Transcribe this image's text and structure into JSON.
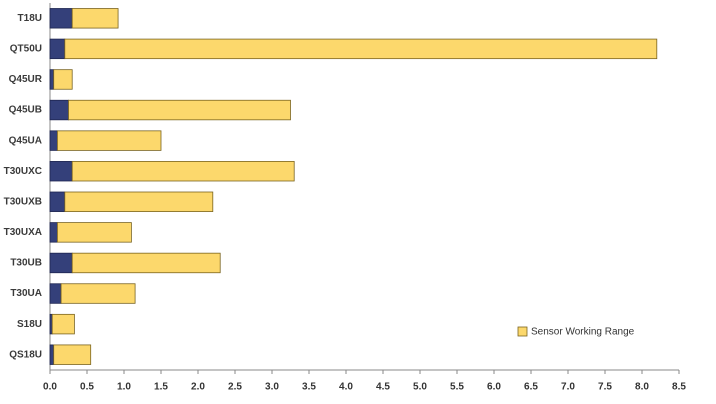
{
  "chart_data": {
    "type": "stacked-barh",
    "categories": [
      "T18U",
      "QT50U",
      "Q45UR",
      "Q45UB",
      "Q45UA",
      "T30UXC",
      "T30UXB",
      "T30UXA",
      "T30UB",
      "T30UA",
      "S18U",
      "QS18U"
    ],
    "series": [
      {
        "color": "#34407a",
        "values": [
          0.3,
          0.2,
          0.05,
          0.25,
          0.1,
          0.3,
          0.2,
          0.1,
          0.3,
          0.15,
          0.03,
          0.05
        ]
      },
      {
        "name": "Sensor Working Range",
        "color": "#fcd86c",
        "values": [
          0.62,
          8.0,
          0.25,
          3.0,
          1.4,
          3.0,
          2.0,
          1.0,
          2.0,
          1.0,
          0.3,
          0.5
        ]
      }
    ],
    "xlim": [
      0,
      8.5
    ],
    "xticks": [
      {
        "value": 0,
        "label": "0.0"
      },
      0.5,
      {
        "value": 1,
        "label": "1.0"
      },
      1.5,
      {
        "value": 2,
        "label": "2.0"
      },
      2.5,
      {
        "value": 3,
        "label": "3.0"
      },
      3.5,
      {
        "value": 4,
        "label": "4.0"
      },
      4.5,
      {
        "value": 5,
        "label": "5.0"
      },
      5.5,
      {
        "value": 6,
        "label": "6.0"
      },
      6.5,
      {
        "value": 7,
        "label": "7.0"
      },
      7.5,
      {
        "value": 8,
        "label": "8.0"
      },
      8.5
    ],
    "grid": false,
    "legend": "lower right"
  }
}
